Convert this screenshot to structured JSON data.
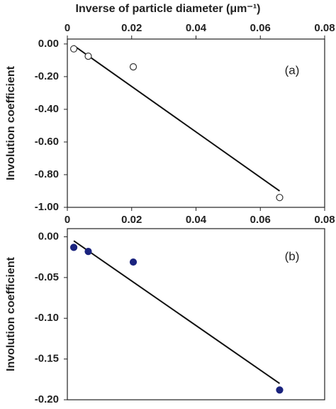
{
  "chart_data": [
    {
      "type": "scatter",
      "x_label": "Inverse of particle diameter (μm⁻¹)",
      "y_label": "Involution coefficient",
      "annotation": "(a)",
      "x": [
        0.002,
        0.0065,
        0.0205,
        0.066
      ],
      "values": [
        -0.03,
        -0.075,
        -0.14,
        -0.94
      ],
      "marker": "open",
      "color": "#333333",
      "trendline": {
        "x": [
          0.002,
          0.066
        ],
        "values": [
          -0.01,
          -0.9
        ]
      },
      "xlim": [
        0,
        0.08
      ],
      "xticks": [
        0,
        0.02,
        0.04,
        0.06,
        0.08
      ],
      "ylim": [
        -1,
        0.03
      ],
      "yticks": [
        {
          "value": 0,
          "label": "0.00"
        },
        {
          "value": -0.2,
          "label": "-0.20"
        },
        {
          "value": -0.4,
          "label": "-0.40"
        },
        {
          "value": -0.6,
          "label": "-0.60"
        },
        {
          "value": -0.8,
          "label": "-0.80"
        },
        {
          "value": -1,
          "label": "-1.00"
        }
      ]
    },
    {
      "type": "scatter",
      "y_label": "Involution coefficient",
      "annotation": "(b)",
      "x": [
        0.002,
        0.0065,
        0.0205,
        0.066
      ],
      "values": [
        -0.013,
        -0.018,
        -0.031,
        -0.188
      ],
      "marker": "filled",
      "color": "#1a237e",
      "trendline": {
        "x": [
          0.002,
          0.066
        ],
        "values": [
          -0.005,
          -0.18
        ]
      },
      "xlim": [
        0,
        0.08
      ],
      "ylim": [
        -0.2,
        0.01
      ],
      "yticks": [
        {
          "value": 0,
          "label": "0.00"
        },
        {
          "value": -0.05,
          "label": "-0.05"
        },
        {
          "value": -0.1,
          "label": "-0.10"
        },
        {
          "value": -0.15,
          "label": "-0.15"
        },
        {
          "value": -0.2,
          "label": "-0.20"
        }
      ]
    }
  ]
}
